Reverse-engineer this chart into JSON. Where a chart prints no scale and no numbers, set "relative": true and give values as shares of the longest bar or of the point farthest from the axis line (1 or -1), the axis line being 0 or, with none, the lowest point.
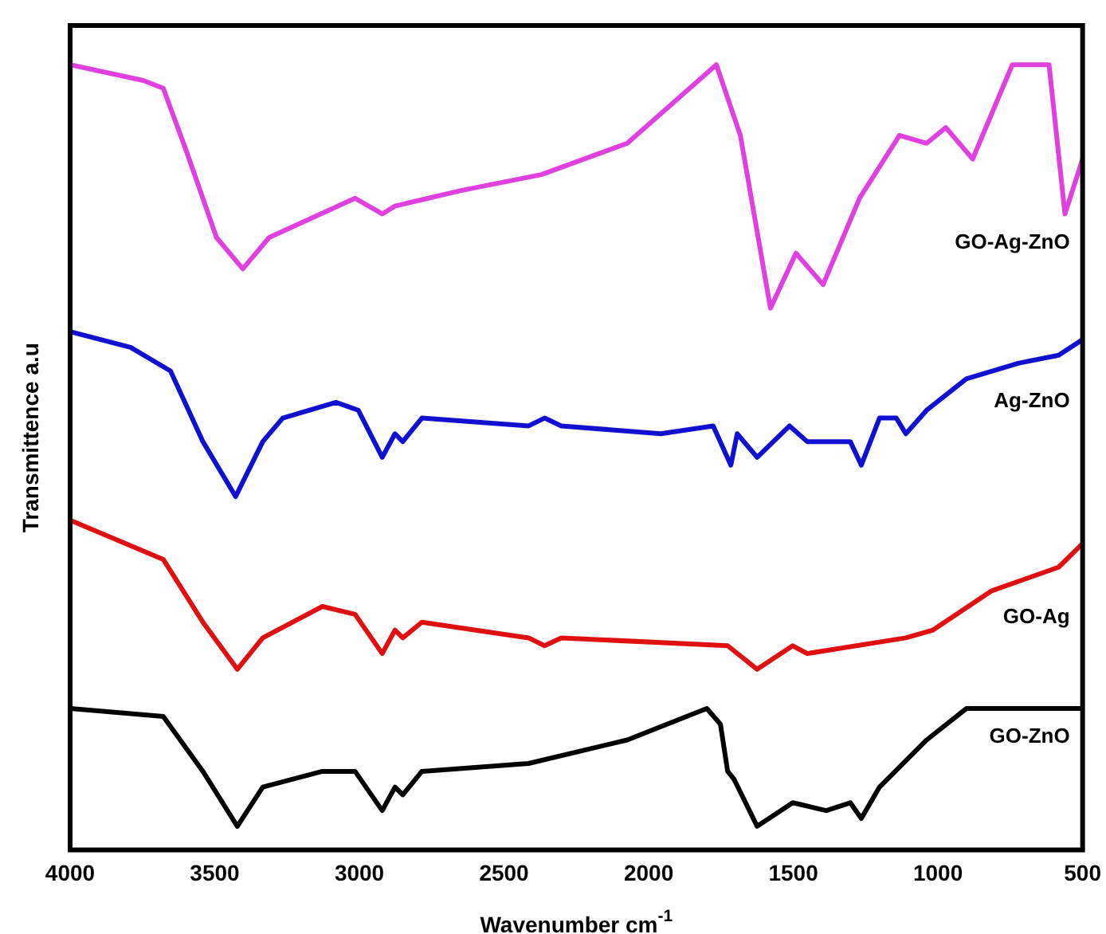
{
  "chart_data": {
    "type": "line",
    "relative": true,
    "xlabel": "Wavenumber cm$^{-1}$",
    "ylabel": "Transmittence a.u",
    "xlim": [
      4000,
      500
    ],
    "xticks": [
      4000,
      3500,
      3000,
      2500,
      2000,
      1500,
      1000,
      500
    ],
    "grid": false,
    "legend": false,
    "marker": "none",
    "line_style": "solid",
    "series": [
      {
        "name": "GO-Ag-ZnO",
        "color": "#e040e0",
        "x": [
          4000,
          3747,
          3678,
          3598,
          3494,
          3403,
          3312,
          3015,
          2921,
          2877,
          2646,
          2371,
          2074,
          1766,
          1683,
          1579,
          1491,
          1397,
          1271,
          1133,
          1039,
          973,
          880,
          743,
          616,
          561,
          500
        ],
        "values": [
          1.0,
          0.98,
          0.97,
          0.89,
          0.78,
          0.74,
          0.78,
          0.83,
          0.81,
          0.82,
          0.84,
          0.86,
          0.9,
          1.0,
          0.91,
          0.69,
          0.76,
          0.72,
          0.83,
          0.91,
          0.9,
          0.92,
          0.88,
          1.0,
          1.0,
          0.81,
          0.88
        ]
      },
      {
        "name": "Ag-ZnO",
        "color": "#1010d0",
        "x": [
          4000,
          3791,
          3653,
          3541,
          3428,
          3334,
          3265,
          3081,
          3004,
          2921,
          2877,
          2850,
          2784,
          2415,
          2360,
          2302,
          1958,
          1777,
          1716,
          1694,
          1625,
          1513,
          1452,
          1375,
          1303,
          1265,
          1202,
          1144,
          1111,
          1039,
          902,
          720,
          583,
          500
        ],
        "values": [
          0.66,
          0.64,
          0.61,
          0.52,
          0.45,
          0.52,
          0.55,
          0.57,
          0.56,
          0.5,
          0.53,
          0.52,
          0.55,
          0.54,
          0.55,
          0.54,
          0.53,
          0.54,
          0.49,
          0.53,
          0.5,
          0.54,
          0.52,
          0.52,
          0.52,
          0.49,
          0.55,
          0.55,
          0.53,
          0.56,
          0.6,
          0.62,
          0.63,
          0.65
        ]
      },
      {
        "name": "GO-Ag",
        "color": "#e01010",
        "x": [
          4000,
          3678,
          3541,
          3422,
          3334,
          3128,
          3015,
          2921,
          2877,
          2850,
          2784,
          2415,
          2360,
          2302,
          1727,
          1625,
          1502,
          1452,
          1111,
          1017,
          814,
          583,
          500
        ],
        "values": [
          0.42,
          0.37,
          0.29,
          0.23,
          0.27,
          0.31,
          0.3,
          0.25,
          0.28,
          0.27,
          0.29,
          0.27,
          0.26,
          0.27,
          0.26,
          0.23,
          0.26,
          0.25,
          0.27,
          0.28,
          0.33,
          0.36,
          0.39
        ]
      },
      {
        "name": "GO-ZnO",
        "color": "#000000",
        "x": [
          4000,
          3678,
          3541,
          3422,
          3334,
          3128,
          3015,
          2921,
          2877,
          2850,
          2784,
          2415,
          2074,
          1799,
          1752,
          1727,
          1705,
          1625,
          1502,
          1386,
          1303,
          1265,
          1202,
          1039,
          902,
          583,
          500
        ],
        "values": [
          0.18,
          0.17,
          0.1,
          0.03,
          0.08,
          0.1,
          0.1,
          0.05,
          0.08,
          0.07,
          0.1,
          0.11,
          0.14,
          0.18,
          0.16,
          0.1,
          0.09,
          0.03,
          0.06,
          0.05,
          0.06,
          0.04,
          0.08,
          0.14,
          0.18,
          0.18,
          0.18
        ]
      }
    ]
  }
}
